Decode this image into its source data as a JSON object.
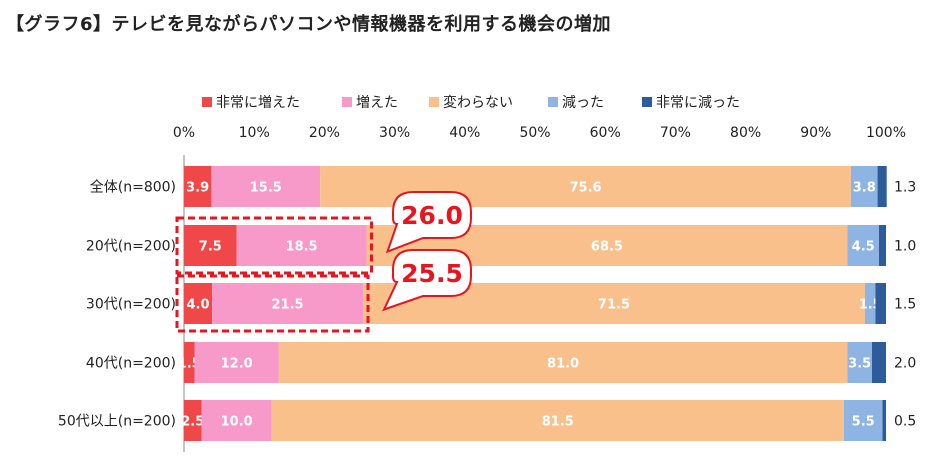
{
  "title": "【グラフ6】テレビを見ながらパソコンや情報機器を利用する機会の増加",
  "chart_data": {
    "type": "stacked-bar-horizontal",
    "xlim": [
      0,
      100
    ],
    "x_ticks": [
      "0%",
      "10%",
      "20%",
      "30%",
      "40%",
      "50%",
      "60%",
      "70%",
      "80%",
      "90%",
      "100%"
    ],
    "legend_position": "top",
    "categories": [
      "全体(n=800)",
      "20代(n=200)",
      "30代(n=200)",
      "40代(n=200)",
      "50代以上(n=200)"
    ],
    "series": [
      {
        "name": "非常に増えた",
        "color": "#f04848",
        "values": [
          3.9,
          7.5,
          4.0,
          1.5,
          2.5
        ]
      },
      {
        "name": "増えた",
        "color": "#f799c9",
        "values": [
          15.5,
          18.5,
          21.5,
          12.0,
          10.0
        ]
      },
      {
        "name": "変わらない",
        "color": "#f9c08c",
        "values": [
          75.6,
          68.5,
          71.5,
          81.0,
          81.5
        ]
      },
      {
        "name": "減った",
        "color": "#8eb4e3",
        "values": [
          3.8,
          4.5,
          1.5,
          3.5,
          5.5
        ]
      },
      {
        "name": "非常に減った",
        "color": "#2e5b9a",
        "values": [
          1.3,
          1.0,
          1.5,
          2.0,
          0.5
        ]
      }
    ],
    "callouts": [
      {
        "category_index": 1,
        "value": "26.0"
      },
      {
        "category_index": 2,
        "value": "25.5"
      }
    ]
  }
}
